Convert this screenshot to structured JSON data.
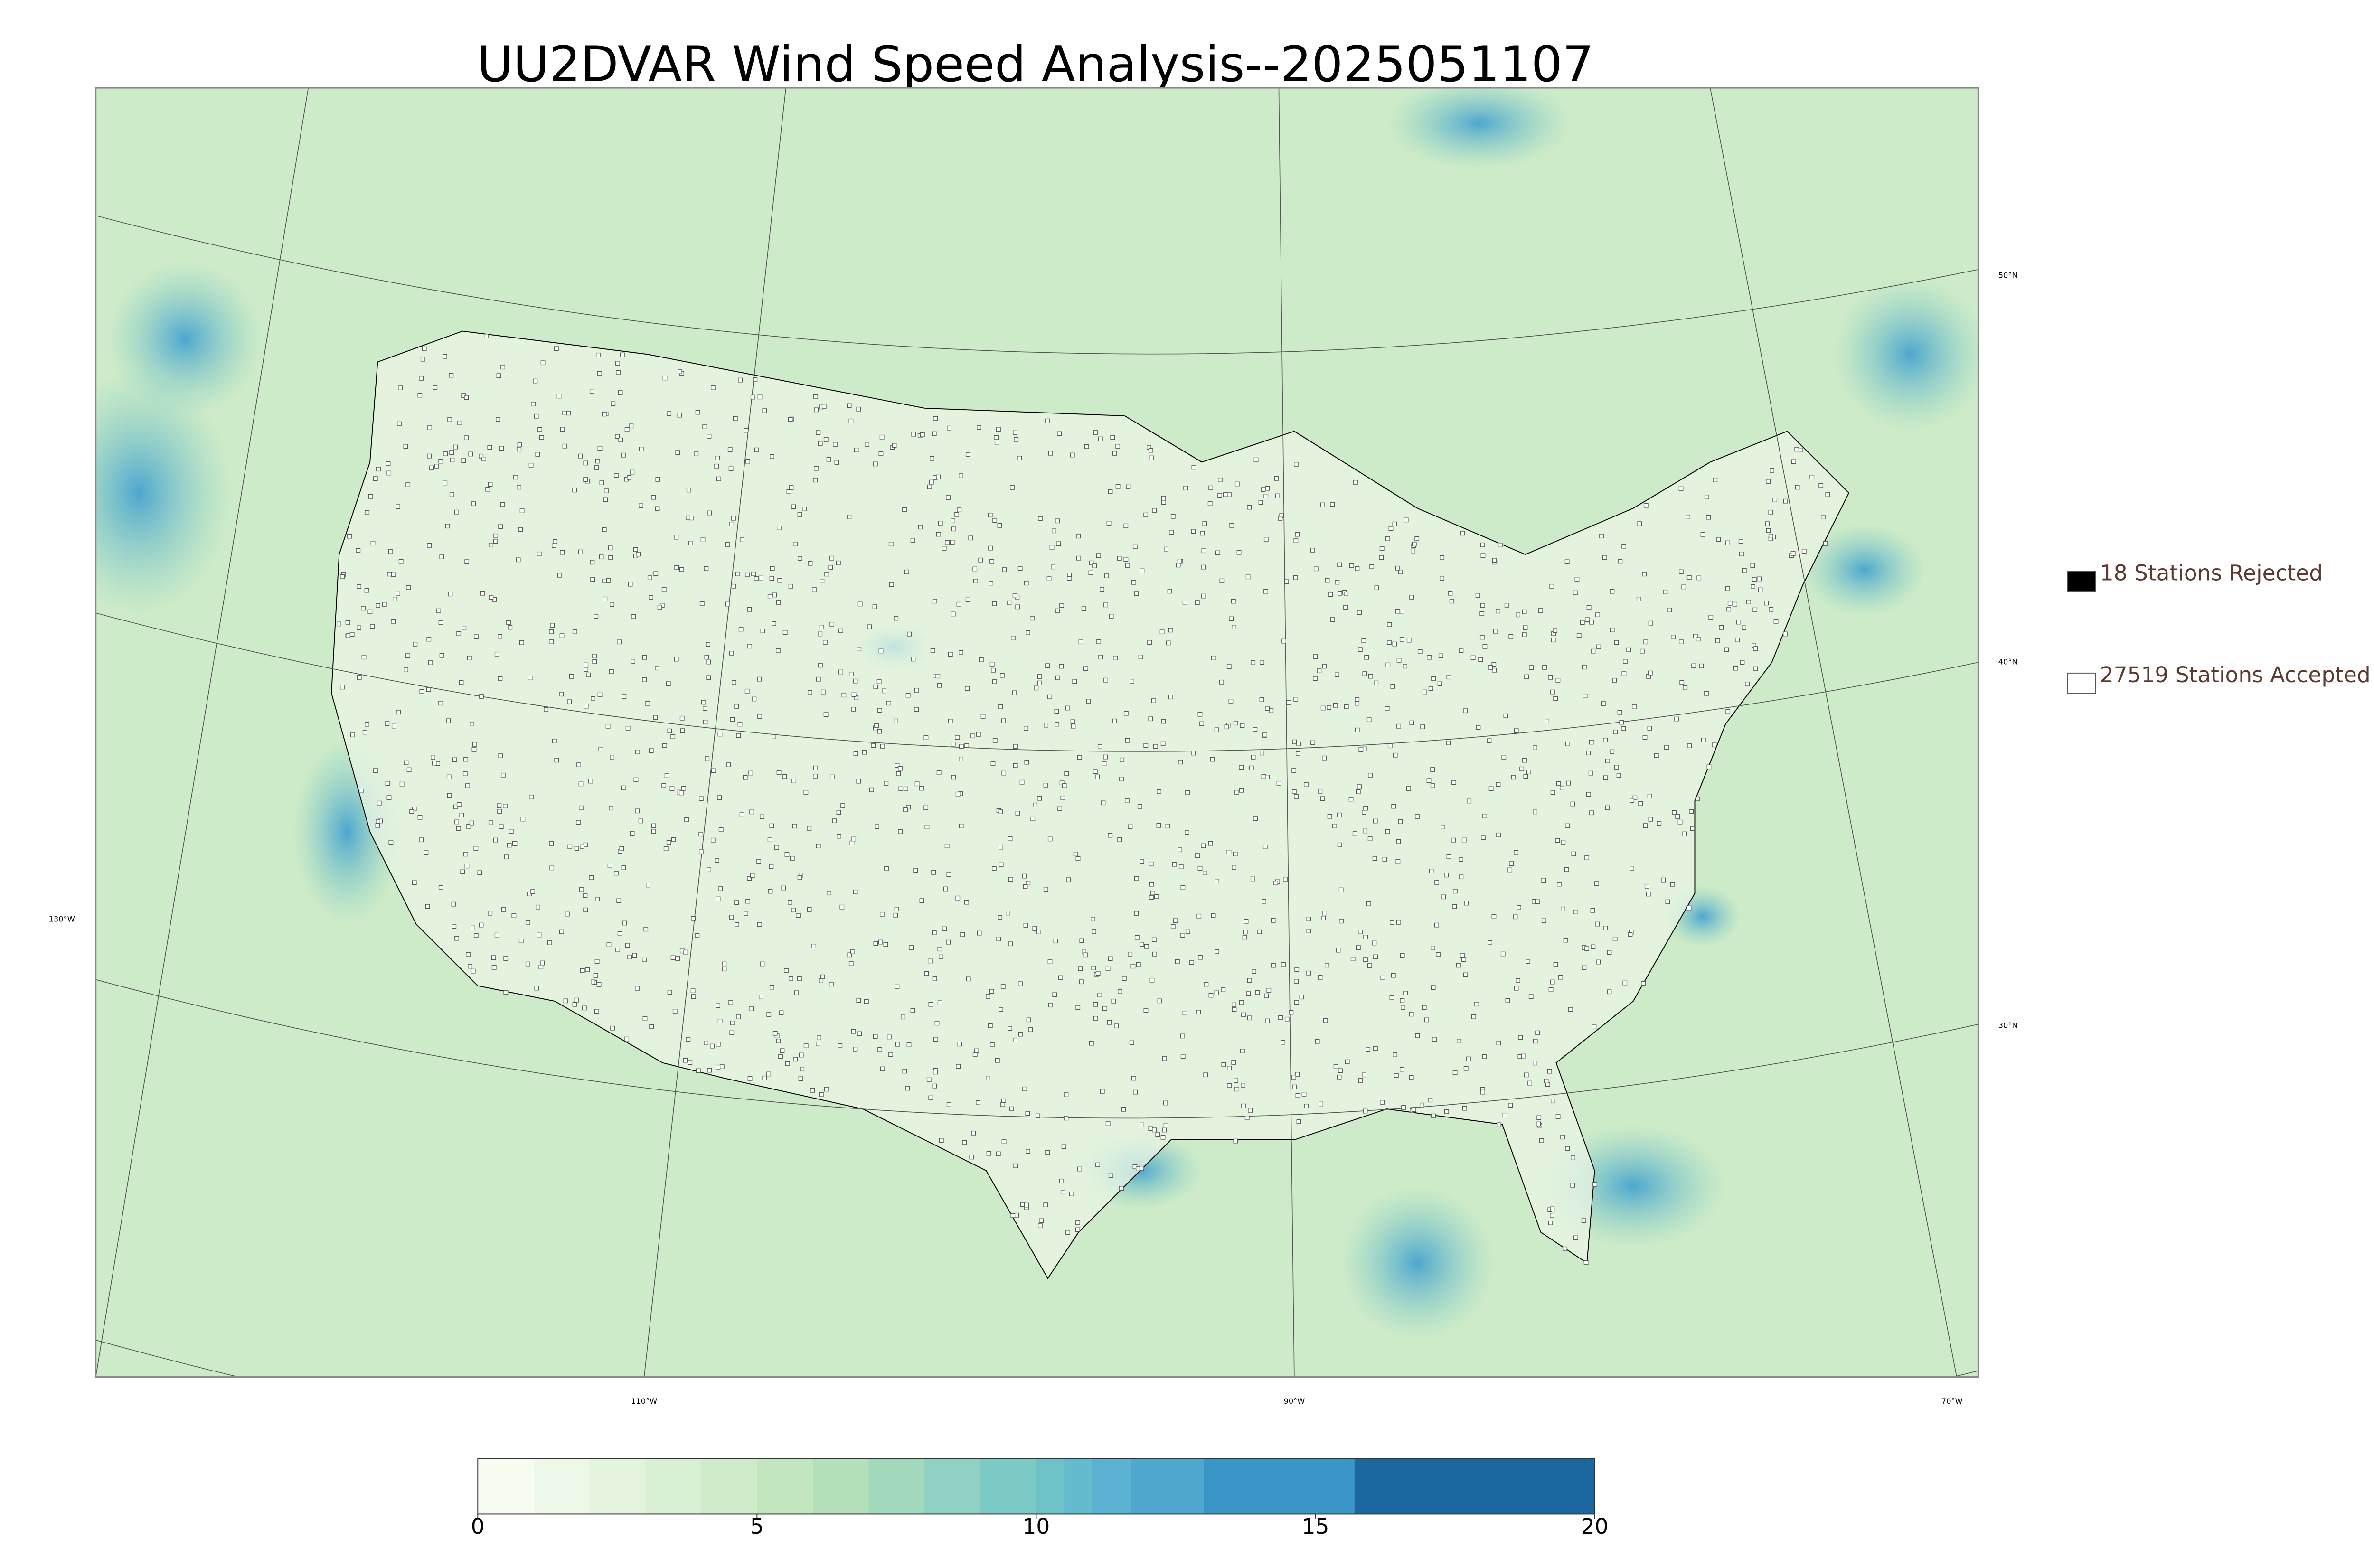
{
  "title": "UU2DVAR Wind Speed Analysis--2025051107",
  "legend": {
    "items": [
      {
        "label": "18 Stations Rejected",
        "color": "#000000"
      },
      {
        "label": "27519 Stations Accepted",
        "color": "#ffffff"
      }
    ]
  },
  "map": {
    "lat_labels": [
      "50°N",
      "40°N",
      "30°N"
    ],
    "lon_labels": [
      "130°W",
      "110°W",
      "90°W",
      "70°W"
    ]
  },
  "colorbar": {
    "lim": [
      0,
      20
    ],
    "ticks": [
      0,
      5,
      10,
      15,
      20
    ],
    "levels": [
      0,
      1,
      2,
      3,
      4,
      5,
      6,
      7,
      8,
      9,
      10,
      10.5,
      11,
      11.7,
      13,
      15.7,
      20
    ],
    "colors": [
      "#f7fcf0",
      "#eef8e9",
      "#e4f4df",
      "#daf0d4",
      "#cfebc9",
      "#c2e6be",
      "#b3e0b8",
      "#a2d9bd",
      "#8fd1c2",
      "#7ccac5",
      "#6fc3c8",
      "#63bbcd",
      "#5ab1d2",
      "#4fa6cf",
      "#3a96c6",
      "#1c67a0"
    ]
  }
}
